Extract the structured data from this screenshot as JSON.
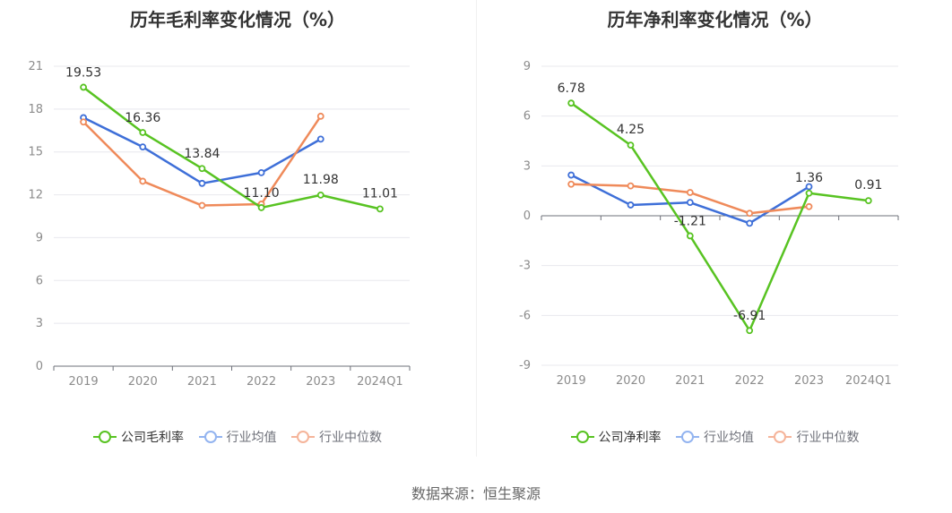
{
  "chart_data": [
    {
      "type": "line",
      "title": "历年毛利率变化情况（%）",
      "categories": [
        "2019",
        "2020",
        "2021",
        "2022",
        "2023",
        "2024Q1"
      ],
      "y_ticks": [
        "21",
        "18",
        "15",
        "12",
        "9",
        "6",
        "3",
        "0"
      ],
      "ylim": [
        0,
        21
      ],
      "series": [
        {
          "name": "公司毛利率",
          "color": "#58c322",
          "values": [
            19.53,
            16.36,
            13.84,
            11.1,
            11.98,
            11.01
          ],
          "labels": [
            "19.53",
            "16.36",
            "13.84",
            "11.10",
            "11.98",
            "11.01"
          ]
        },
        {
          "name": "行业均值",
          "color": "#3e6fd8",
          "values": [
            17.4,
            15.35,
            12.8,
            13.55,
            15.9,
            null
          ]
        },
        {
          "name": "行业中位数",
          "color": "#ef8a5a",
          "values": [
            17.1,
            12.95,
            11.25,
            11.35,
            17.5,
            null
          ]
        }
      ]
    },
    {
      "type": "line",
      "title": "历年净利率变化情况（%）",
      "categories": [
        "2019",
        "2020",
        "2021",
        "2022",
        "2023",
        "2024Q1"
      ],
      "y_ticks": [
        "9",
        "6",
        "3",
        "0",
        "-3",
        "-6",
        "-9"
      ],
      "ylim": [
        -9,
        9
      ],
      "series": [
        {
          "name": "公司净利率",
          "color": "#58c322",
          "values": [
            6.78,
            4.25,
            -1.21,
            -6.91,
            1.36,
            0.91
          ],
          "labels": [
            "6.78",
            "4.25",
            "-1.21",
            "-6.91",
            "1.36",
            "0.91"
          ]
        },
        {
          "name": "行业均值",
          "color": "#3e6fd8",
          "values": [
            2.45,
            0.65,
            0.8,
            -0.45,
            1.75,
            null
          ]
        },
        {
          "name": "行业中位数",
          "color": "#ef8a5a",
          "values": [
            1.9,
            1.8,
            1.4,
            0.15,
            0.55,
            null
          ]
        }
      ]
    }
  ],
  "legend_colors": {
    "primary": "#58c322",
    "avg": "#93b4f0",
    "median": "#f5b49a"
  },
  "source": "数据来源：恒生聚源"
}
